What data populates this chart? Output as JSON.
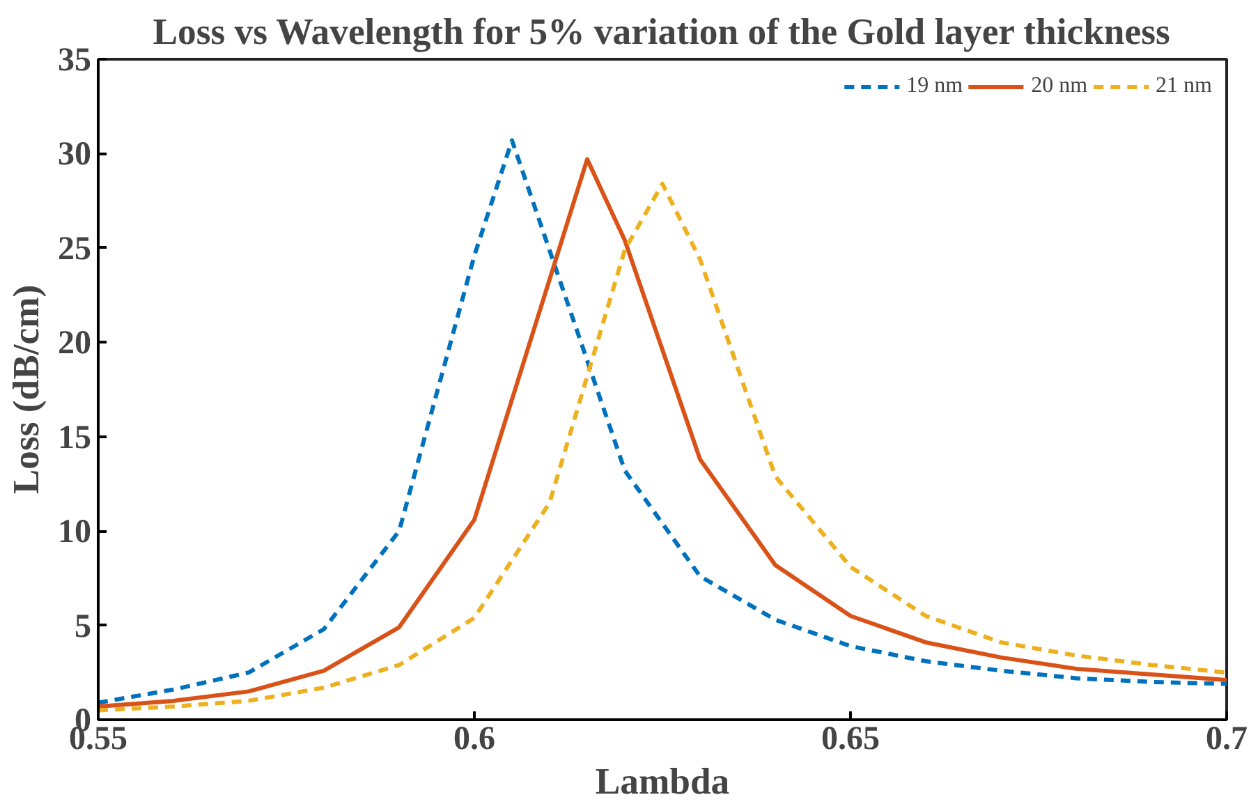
{
  "chart_data": {
    "type": "line",
    "title": "Loss vs Wavelength for 5% variation of the Gold layer thickness",
    "xlabel": "Lambda",
    "ylabel": "Loss (dB/cm)",
    "xlim": [
      0.55,
      0.7
    ],
    "xticks": [
      0.55,
      0.6,
      0.65,
      0.7
    ],
    "ylim": [
      0,
      35
    ],
    "yticks": [
      0,
      5,
      10,
      15,
      20,
      25,
      30,
      35
    ],
    "grid": false,
    "legend": "top right",
    "series": [
      {
        "name": "19 nm",
        "color": "#0072bd",
        "line_style": "dashed",
        "x": [
          0.55,
          0.56,
          0.57,
          0.58,
          0.59,
          0.6,
          0.605,
          0.62,
          0.63,
          0.64,
          0.65,
          0.66,
          0.67,
          0.68,
          0.69,
          0.7
        ],
        "values": [
          0.9,
          1.6,
          2.5,
          4.8,
          10,
          24.6,
          30.7,
          13.2,
          7.6,
          5.3,
          3.9,
          3.1,
          2.6,
          2.2,
          2.0,
          1.9
        ]
      },
      {
        "name": "20 nm",
        "color": "#d95319",
        "line_style": "solid",
        "x": [
          0.55,
          0.56,
          0.57,
          0.58,
          0.59,
          0.6,
          0.615,
          0.62,
          0.63,
          0.64,
          0.65,
          0.66,
          0.67,
          0.68,
          0.69,
          0.7
        ],
        "values": [
          0.7,
          1.0,
          1.5,
          2.6,
          4.9,
          10.6,
          29.7,
          25.4,
          13.8,
          8.2,
          5.5,
          4.1,
          3.3,
          2.7,
          2.4,
          2.1
        ]
      },
      {
        "name": "21 nm",
        "color": "#edb120",
        "line_style": "dashed",
        "x": [
          0.55,
          0.56,
          0.57,
          0.58,
          0.59,
          0.6,
          0.61,
          0.62,
          0.625,
          0.63,
          0.64,
          0.65,
          0.66,
          0.67,
          0.68,
          0.69,
          0.7
        ],
        "values": [
          0.5,
          0.7,
          1.0,
          1.7,
          2.9,
          5.4,
          11.5,
          24.9,
          28.4,
          24.4,
          12.9,
          8.1,
          5.5,
          4.1,
          3.4,
          2.9,
          2.5
        ]
      }
    ]
  }
}
